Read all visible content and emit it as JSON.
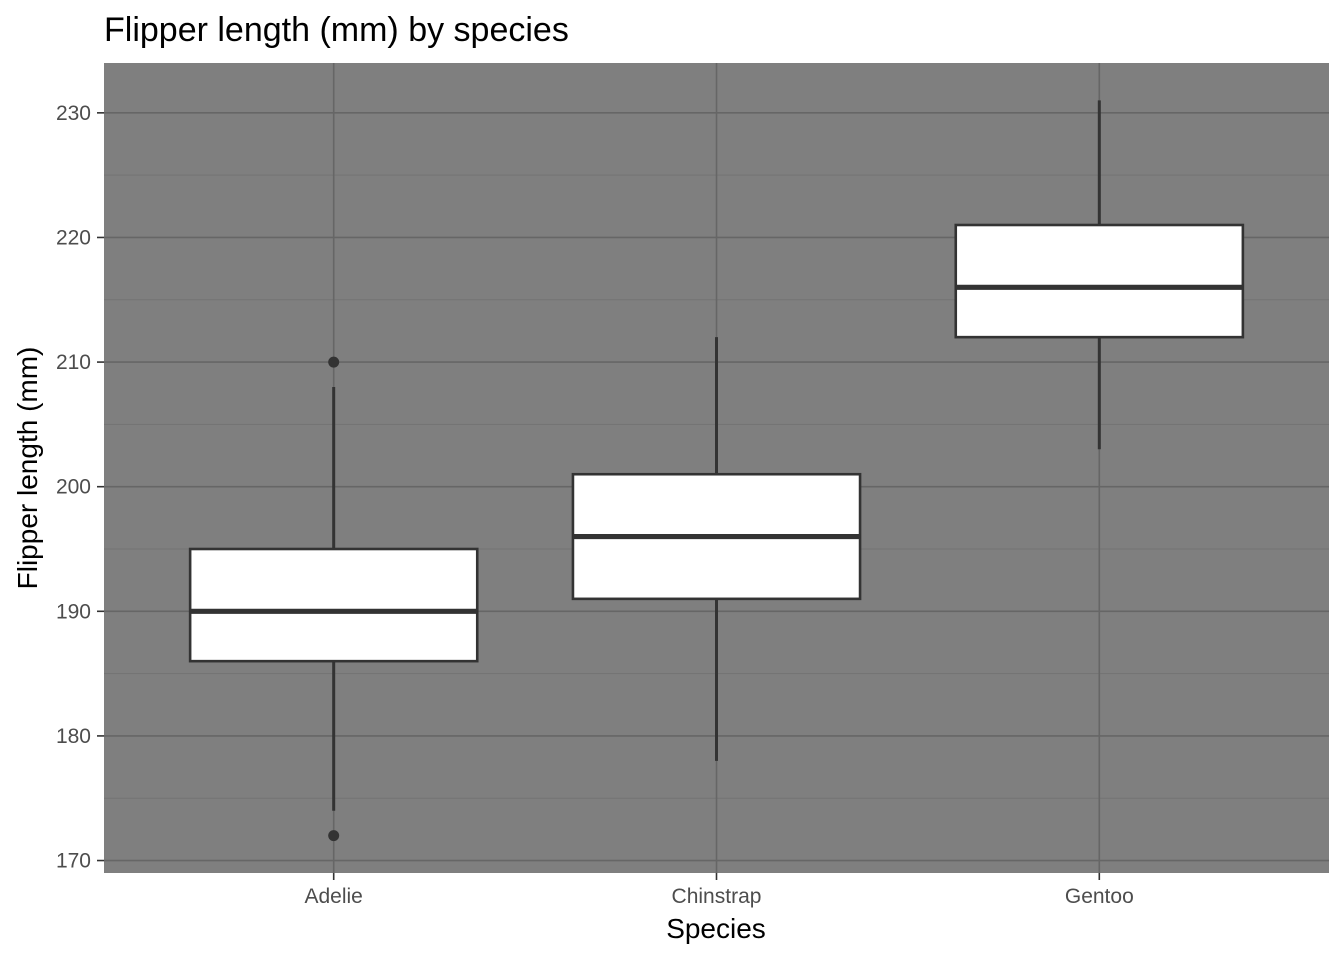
{
  "chart_data": {
    "type": "boxplot",
    "title": "Flipper length (mm) by species",
    "xlabel": "Species",
    "ylabel": "Flipper length (mm)",
    "categories": [
      "Adelie",
      "Chinstrap",
      "Gentoo"
    ],
    "ylim": [
      169,
      234
    ],
    "yticks": [
      170,
      180,
      190,
      200,
      210,
      220,
      230
    ],
    "ytick_labels": [
      "170",
      "180",
      "190",
      "200",
      "210",
      "220",
      "230"
    ],
    "yminor": [
      175,
      185,
      195,
      205,
      215,
      225
    ],
    "grid": true,
    "legend": "none",
    "boxes": [
      {
        "category": "Adelie",
        "whisker_low": 174,
        "q1": 186,
        "median": 190,
        "q3": 195,
        "whisker_high": 208,
        "outliers": [
          172,
          210
        ]
      },
      {
        "category": "Chinstrap",
        "whisker_low": 178,
        "q1": 191,
        "median": 196,
        "q3": 201,
        "whisker_high": 212,
        "outliers": []
      },
      {
        "category": "Gentoo",
        "whisker_low": 203,
        "q1": 212,
        "median": 216,
        "q3": 221,
        "whisker_high": 231,
        "outliers": []
      }
    ],
    "colors": {
      "panel_background": "#7f7f7f",
      "grid_major": "#666666",
      "grid_minor": "#737373",
      "box_fill": "#ffffff",
      "box_line": "#333333",
      "tick_text": "#4d4d4d"
    }
  }
}
